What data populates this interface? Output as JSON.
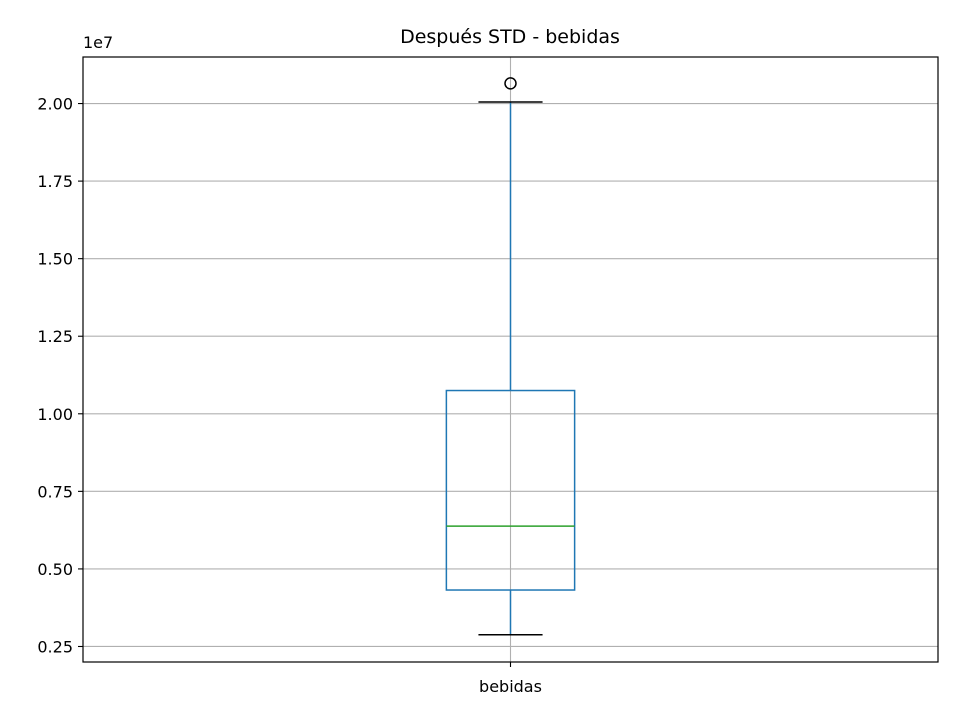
{
  "chart_data": {
    "type": "box",
    "title": "Después STD - bebidas",
    "xlabel": "",
    "ylabel": "",
    "offset_label": "1e7",
    "scale": 10000000,
    "categories": [
      "bebidas"
    ],
    "boxes": [
      {
        "category": "bebidas",
        "whisker_low": 2880000,
        "q1": 4320000,
        "median": 6380000,
        "q3": 10750000,
        "whisker_high": 20050000,
        "outliers": [
          20650000
        ]
      }
    ],
    "ylim": [
      2000000,
      21500000
    ],
    "yticks": [
      2500000,
      5000000,
      7500000,
      10000000,
      12500000,
      15000000,
      17500000,
      20000000
    ],
    "ytick_labels": [
      "0.25",
      "0.50",
      "0.75",
      "1.00",
      "1.25",
      "1.50",
      "1.75",
      "2.00"
    ],
    "grid": true,
    "colors": {
      "box": "#1f77b4",
      "median": "#2ca02c",
      "whisker_cap": "#000000",
      "outlier": "#000000",
      "grid": "#b0b0b0",
      "axes": "#000000"
    }
  }
}
